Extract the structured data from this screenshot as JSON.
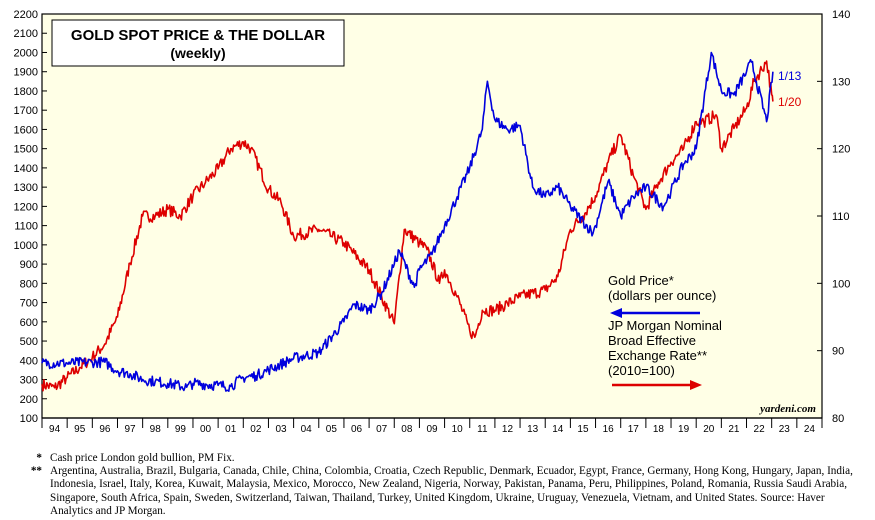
{
  "chart_data": {
    "type": "line",
    "title": "GOLD SPOT PRICE & THE DOLLAR",
    "subtitle": "(weekly)",
    "source_tag": "yardeni.com",
    "x_ticks": [
      "94",
      "95",
      "96",
      "97",
      "98",
      "99",
      "00",
      "01",
      "02",
      "03",
      "04",
      "05",
      "06",
      "07",
      "08",
      "09",
      "10",
      "11",
      "12",
      "13",
      "14",
      "15",
      "16",
      "17",
      "18",
      "19",
      "20",
      "21",
      "22",
      "23",
      "24"
    ],
    "xlim": [
      1994,
      2025
    ],
    "left_axis": {
      "ylim": [
        100,
        2200
      ],
      "ticks": [
        100,
        200,
        300,
        400,
        500,
        600,
        700,
        800,
        900,
        1000,
        1100,
        1200,
        1300,
        1400,
        1500,
        1600,
        1700,
        1800,
        1900,
        2000,
        2100,
        2200
      ]
    },
    "right_axis": {
      "ylim": [
        80,
        140
      ],
      "ticks": [
        80,
        90,
        100,
        110,
        120,
        130,
        140
      ]
    },
    "series": [
      {
        "name": "Gold Price* (dollars per ounce)",
        "axis": "left",
        "color": "#0000dd",
        "x": [
          1994,
          1995,
          1996,
          1996.5,
          1997,
          1997.5,
          1998,
          1998.5,
          1999,
          1999.75,
          2000,
          2001,
          2001.5,
          2002,
          2002.5,
          2003,
          2004,
          2005,
          2006,
          2006.4,
          2007,
          2007.5,
          2008,
          2008.2,
          2008.8,
          2009,
          2009.5,
          2010,
          2010.5,
          2011,
          2011.5,
          2011.7,
          2012,
          2012.5,
          2013,
          2013.5,
          2014,
          2014.5,
          2015,
          2015.9,
          2016,
          2016.5,
          2017,
          2017.5,
          2018,
          2018.7,
          2019,
          2019.5,
          2020,
          2020.6,
          2021,
          2021.5,
          2022,
          2022.2,
          2022.8,
          2023.05
        ],
        "values": [
          385,
          385,
          390,
          390,
          345,
          330,
          300,
          290,
          280,
          260,
          280,
          270,
          265,
          310,
          320,
          350,
          410,
          440,
          600,
          690,
          660,
          750,
          900,
          970,
          780,
          870,
          950,
          1100,
          1250,
          1400,
          1600,
          1850,
          1650,
          1600,
          1620,
          1300,
          1250,
          1300,
          1200,
          1060,
          1100,
          1330,
          1150,
          1250,
          1300,
          1200,
          1280,
          1420,
          1500,
          2000,
          1800,
          1780,
          1900,
          1950,
          1640,
          1900
        ]
      },
      {
        "name": "JP Morgan Nominal Broad Effective Exchange Rate** (2010=100)",
        "axis": "right",
        "color": "#dd0000",
        "x": [
          1994,
          1994.5,
          1995,
          1995.5,
          1996,
          1996.5,
          1997,
          1997.5,
          1998,
          1998.5,
          1999,
          1999.5,
          2000,
          2000.5,
          2001,
          2001.5,
          2002,
          2002.3,
          2003,
          2003.5,
          2004,
          2005,
          2005.5,
          2006,
          2007,
          2007.5,
          2008,
          2008.4,
          2009,
          2009.3,
          2009.8,
          2010,
          2010.5,
          2011,
          2011.2,
          2011.5,
          2012,
          2012.5,
          2013,
          2014,
          2014.5,
          2015,
          2015.5,
          2016,
          2016.5,
          2017,
          2017.5,
          2018,
          2018.5,
          2019,
          2019.5,
          2020,
          2020.3,
          2020.8,
          2021,
          2021.5,
          2022,
          2022.3,
          2022.8,
          2023,
          2023.05
        ],
        "values": [
          85,
          84.5,
          86,
          87.5,
          89,
          91,
          95,
          103,
          110,
          110,
          111,
          110,
          113,
          115,
          117,
          120,
          121,
          120,
          114,
          112,
          107,
          108,
          107,
          106,
          102,
          98,
          94,
          108,
          106,
          105,
          100,
          102,
          98,
          93,
          92,
          96,
          96,
          97,
          98,
          99,
          101,
          108,
          110,
          113,
          118,
          122,
          116,
          111,
          115,
          118,
          120,
          124,
          124,
          125,
          120,
          123,
          126,
          130,
          133,
          128,
          127
        ]
      }
    ],
    "end_labels": [
      "1/13",
      "1/20"
    ],
    "legend": {
      "gold_line1": "Gold Price*",
      "gold_line2": "(dollars per ounce)",
      "jpm_line1": "JP Morgan Nominal",
      "jpm_line2": "Broad Effective",
      "jpm_line3": "Exchange Rate**",
      "jpm_line4": "(2010=100)"
    }
  },
  "footnotes": {
    "note1_mark": "*",
    "note1_text": "Cash price London gold bullion, PM Fix.",
    "note2_mark": "**",
    "note2_text": "Argentina, Australia, Brazil, Bulgaria, Canada, Chile, China, Colombia, Croatia, Czech Republic, Denmark, Ecuador, Egypt, France, Germany, Hong Kong, Hungary, Japan, India, Indonesia, Israel, Italy, Korea, Kuwait, Malaysia, Mexico, Morocco, New Zealand, Nigeria, Norway, Pakistan, Panama, Peru, Philippines, Poland, Romania, Russia Saudi Arabia, Singapore, South Africa, Spain, Sweden, Switzerland, Taiwan, Thailand, Turkey, United Kingdom, Ukraine, Uruguay, Venezuela, Vietnam, and United States. Source: Haver Analytics and JP Morgan."
  }
}
